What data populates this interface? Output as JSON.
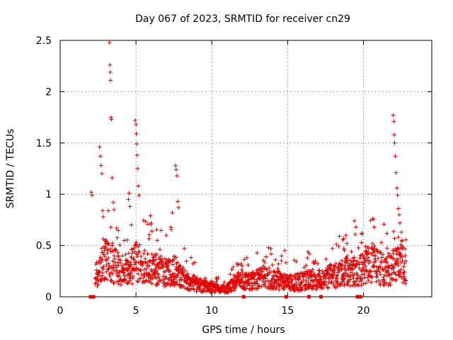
{
  "chart_data": {
    "type": "scatter",
    "title": "Day 067 of 2023, SRMTID for receiver cn29",
    "xlabel": "GPS time / hours",
    "ylabel": "SRMTID / TECUs",
    "xlim": [
      0,
      24.5
    ],
    "ylim": [
      0,
      2.5
    ],
    "x_ticks": [
      0,
      5,
      10,
      15,
      20
    ],
    "y_ticks": [
      0,
      0.5,
      1,
      1.5,
      2,
      2.5
    ],
    "x_tick_labels": [
      "0",
      "5",
      "10",
      "15",
      "20"
    ],
    "y_tick_labels": [
      "0",
      "0.5",
      "1",
      "1.5",
      "2",
      "2.5"
    ],
    "grid": true,
    "marker": "plus",
    "color": "#e00000",
    "series": [
      {
        "name": "SRMTID",
        "profile": [
          [
            2.0,
            0.15
          ],
          [
            2.4,
            0.28
          ],
          [
            2.7,
            0.3
          ],
          [
            3.0,
            0.45
          ],
          [
            3.4,
            0.4
          ],
          [
            3.8,
            0.32
          ],
          [
            4.2,
            0.3
          ],
          [
            4.6,
            0.32
          ],
          [
            5.0,
            0.4
          ],
          [
            5.5,
            0.35
          ],
          [
            6.0,
            0.33
          ],
          [
            6.5,
            0.3
          ],
          [
            7.0,
            0.28
          ],
          [
            7.5,
            0.32
          ],
          [
            8.0,
            0.25
          ],
          [
            8.5,
            0.18
          ],
          [
            9.0,
            0.14
          ],
          [
            9.5,
            0.12
          ],
          [
            10.0,
            0.1
          ],
          [
            10.5,
            0.09
          ],
          [
            11.0,
            0.1
          ],
          [
            11.5,
            0.16
          ],
          [
            12.0,
            0.2
          ],
          [
            12.5,
            0.18
          ],
          [
            13.0,
            0.2
          ],
          [
            13.5,
            0.22
          ],
          [
            14.0,
            0.2
          ],
          [
            14.5,
            0.18
          ],
          [
            15.0,
            0.16
          ],
          [
            15.5,
            0.17
          ],
          [
            16.0,
            0.18
          ],
          [
            16.5,
            0.2
          ],
          [
            17.0,
            0.2
          ],
          [
            17.5,
            0.22
          ],
          [
            18.0,
            0.24
          ],
          [
            18.5,
            0.26
          ],
          [
            19.0,
            0.3
          ],
          [
            19.5,
            0.28
          ],
          [
            20.0,
            0.32
          ],
          [
            20.5,
            0.4
          ],
          [
            21.0,
            0.33
          ],
          [
            21.5,
            0.3
          ],
          [
            22.0,
            0.35
          ],
          [
            22.5,
            0.38
          ],
          [
            22.8,
            0.36
          ]
        ],
        "peaks": [
          [
            2.05,
            1.02
          ],
          [
            2.1,
            0.99
          ],
          [
            2.6,
            1.46
          ],
          [
            2.65,
            1.37
          ],
          [
            2.7,
            1.28
          ],
          [
            2.75,
            1.2
          ],
          [
            2.8,
            0.84
          ],
          [
            3.25,
            2.48
          ],
          [
            3.28,
            2.26
          ],
          [
            3.3,
            2.19
          ],
          [
            3.32,
            2.11
          ],
          [
            3.35,
            1.75
          ],
          [
            3.38,
            1.73
          ],
          [
            3.42,
            1.16
          ],
          [
            3.5,
            0.92
          ],
          [
            3.55,
            0.85
          ],
          [
            4.5,
            0.95
          ],
          [
            4.55,
            1.01
          ],
          [
            4.6,
            0.88
          ],
          [
            4.7,
            0.7
          ],
          [
            4.95,
            1.72
          ],
          [
            5.0,
            1.68
          ],
          [
            5.02,
            1.59
          ],
          [
            5.05,
            1.49
          ],
          [
            5.08,
            1.38
          ],
          [
            5.1,
            1.25
          ],
          [
            5.15,
            1.08
          ],
          [
            5.2,
            0.99
          ],
          [
            5.95,
            0.79
          ],
          [
            6.0,
            0.72
          ],
          [
            6.05,
            0.64
          ],
          [
            6.4,
            0.55
          ],
          [
            7.0,
            0.6
          ],
          [
            7.4,
            0.82
          ],
          [
            7.6,
            1.28
          ],
          [
            7.65,
            1.24
          ],
          [
            7.7,
            1.18
          ],
          [
            7.75,
            0.93
          ],
          [
            7.8,
            0.87
          ],
          [
            19.4,
            0.74
          ],
          [
            19.5,
            0.68
          ],
          [
            19.9,
            0.62
          ],
          [
            20.6,
            0.76
          ],
          [
            20.7,
            0.68
          ],
          [
            21.95,
            1.77
          ],
          [
            22.0,
            1.71
          ],
          [
            22.02,
            1.58
          ],
          [
            22.05,
            1.5
          ],
          [
            22.1,
            1.37
          ],
          [
            22.15,
            1.21
          ],
          [
            22.2,
            1.06
          ],
          [
            22.25,
            0.99
          ],
          [
            22.3,
            0.86
          ],
          [
            22.35,
            0.8
          ],
          [
            22.4,
            0.72
          ],
          [
            22.3,
            0.58
          ],
          [
            22.5,
            0.63
          ],
          [
            14.2,
            0.36
          ],
          [
            14.4,
            0.32
          ],
          [
            14.8,
            0.45
          ],
          [
            12.0,
            0.3
          ],
          [
            13.4,
            0.3
          ],
          [
            16.8,
            0.33
          ],
          [
            18.7,
            0.47
          ],
          [
            18.9,
            0.52
          ],
          [
            16.3,
            0.38
          ]
        ]
      }
    ],
    "data_gaps_at_zero": [
      2.0,
      2.2,
      12.1,
      14.9,
      16.4,
      17.2,
      19.6,
      19.8
    ]
  }
}
